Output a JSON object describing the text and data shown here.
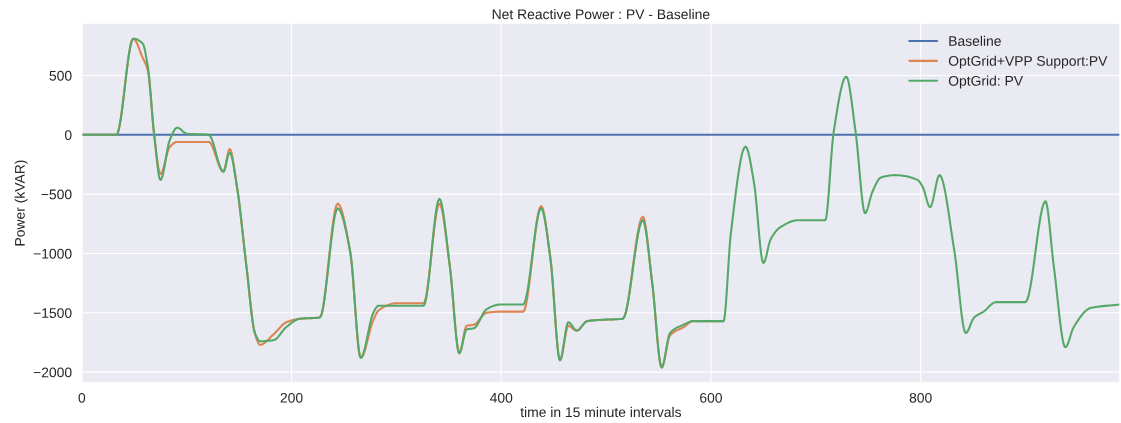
{
  "chart_data": {
    "type": "line",
    "title": "Net Reactive Power : PV - Baseline",
    "xlabel": "time in 15 minute intervals",
    "ylabel": "Power (kVAR)",
    "xlim": [
      0,
      990
    ],
    "ylim": [
      -2090,
      940
    ],
    "xticks": [
      0,
      200,
      400,
      600,
      800
    ],
    "yticks": [
      -2000,
      -1500,
      -1000,
      -500,
      0,
      500
    ],
    "grid": true,
    "legend": "top right",
    "line_style": "solid",
    "marker": "none",
    "series": [
      {
        "name": "Baseline",
        "color": "#4c72b0",
        "x": [
          0,
          990
        ],
        "values": [
          0,
          0
        ]
      },
      {
        "name": "OptGrid+VPP Support:PV",
        "color": "#dd8452",
        "x": [
          0,
          33,
          49,
          58,
          63,
          69,
          75,
          84,
          91,
          100,
          121,
          135,
          141,
          148,
          157,
          165,
          170,
          183,
          195,
          208,
          227,
          244,
          256,
          266,
          278,
          283,
          300,
          326,
          341,
          351,
          360,
          367,
          374,
          386,
          399,
          421,
          438,
          447,
          456,
          464,
          472,
          482,
          494,
          516,
          535,
          544,
          553,
          561,
          574,
          583,
          612
        ],
        "values": [
          0,
          0,
          810,
          650,
          540,
          0,
          -330,
          -100,
          -60,
          -60,
          -60,
          -310,
          -120,
          -440,
          -1110,
          -1670,
          -1770,
          -1680,
          -1580,
          -1550,
          -1540,
          -580,
          -990,
          -1880,
          -1560,
          -1480,
          -1420,
          -1420,
          -580,
          -1110,
          -1840,
          -1610,
          -1600,
          -1500,
          -1490,
          -1490,
          -600,
          -1050,
          -1900,
          -1610,
          -1650,
          -1570,
          -1560,
          -1550,
          -690,
          -1250,
          -1960,
          -1690,
          -1620,
          -1570,
          -1570
        ]
      },
      {
        "name": "OptGrid: PV",
        "color": "#55a868",
        "x": [
          0,
          33,
          49,
          58,
          63,
          69,
          75,
          84,
          91,
          100,
          121,
          135,
          141,
          148,
          157,
          165,
          170,
          183,
          195,
          208,
          227,
          244,
          256,
          266,
          278,
          283,
          300,
          326,
          341,
          351,
          360,
          367,
          374,
          386,
          399,
          421,
          438,
          447,
          456,
          464,
          472,
          482,
          494,
          516,
          535,
          544,
          553,
          561,
          574,
          583,
          612,
          619,
          633,
          641,
          650,
          657,
          666,
          683,
          709,
          717,
          729,
          738,
          747,
          754,
          762,
          776,
          797,
          802,
          809,
          818,
          832,
          843,
          851,
          860,
          872,
          900,
          919,
          927,
          938,
          946,
          962,
          990
        ],
        "values": [
          0,
          0,
          810,
          770,
          570,
          0,
          -380,
          -40,
          60,
          10,
          0,
          -310,
          -150,
          -440,
          -1110,
          -1670,
          -1740,
          -1730,
          -1620,
          -1550,
          -1540,
          -620,
          -990,
          -1880,
          -1500,
          -1440,
          -1440,
          -1440,
          -540,
          -1110,
          -1840,
          -1640,
          -1630,
          -1470,
          -1430,
          -1430,
          -620,
          -1050,
          -1900,
          -1580,
          -1650,
          -1570,
          -1560,
          -1550,
          -720,
          -1250,
          -1960,
          -1670,
          -1600,
          -1570,
          -1570,
          -830,
          -100,
          -400,
          -1080,
          -880,
          -780,
          -720,
          -720,
          20,
          490,
          20,
          -660,
          -480,
          -360,
          -340,
          -380,
          -440,
          -610,
          -340,
          -970,
          -1670,
          -1540,
          -1490,
          -1410,
          -1410,
          -560,
          -1110,
          -1790,
          -1620,
          -1460,
          -1430
        ]
      }
    ]
  }
}
